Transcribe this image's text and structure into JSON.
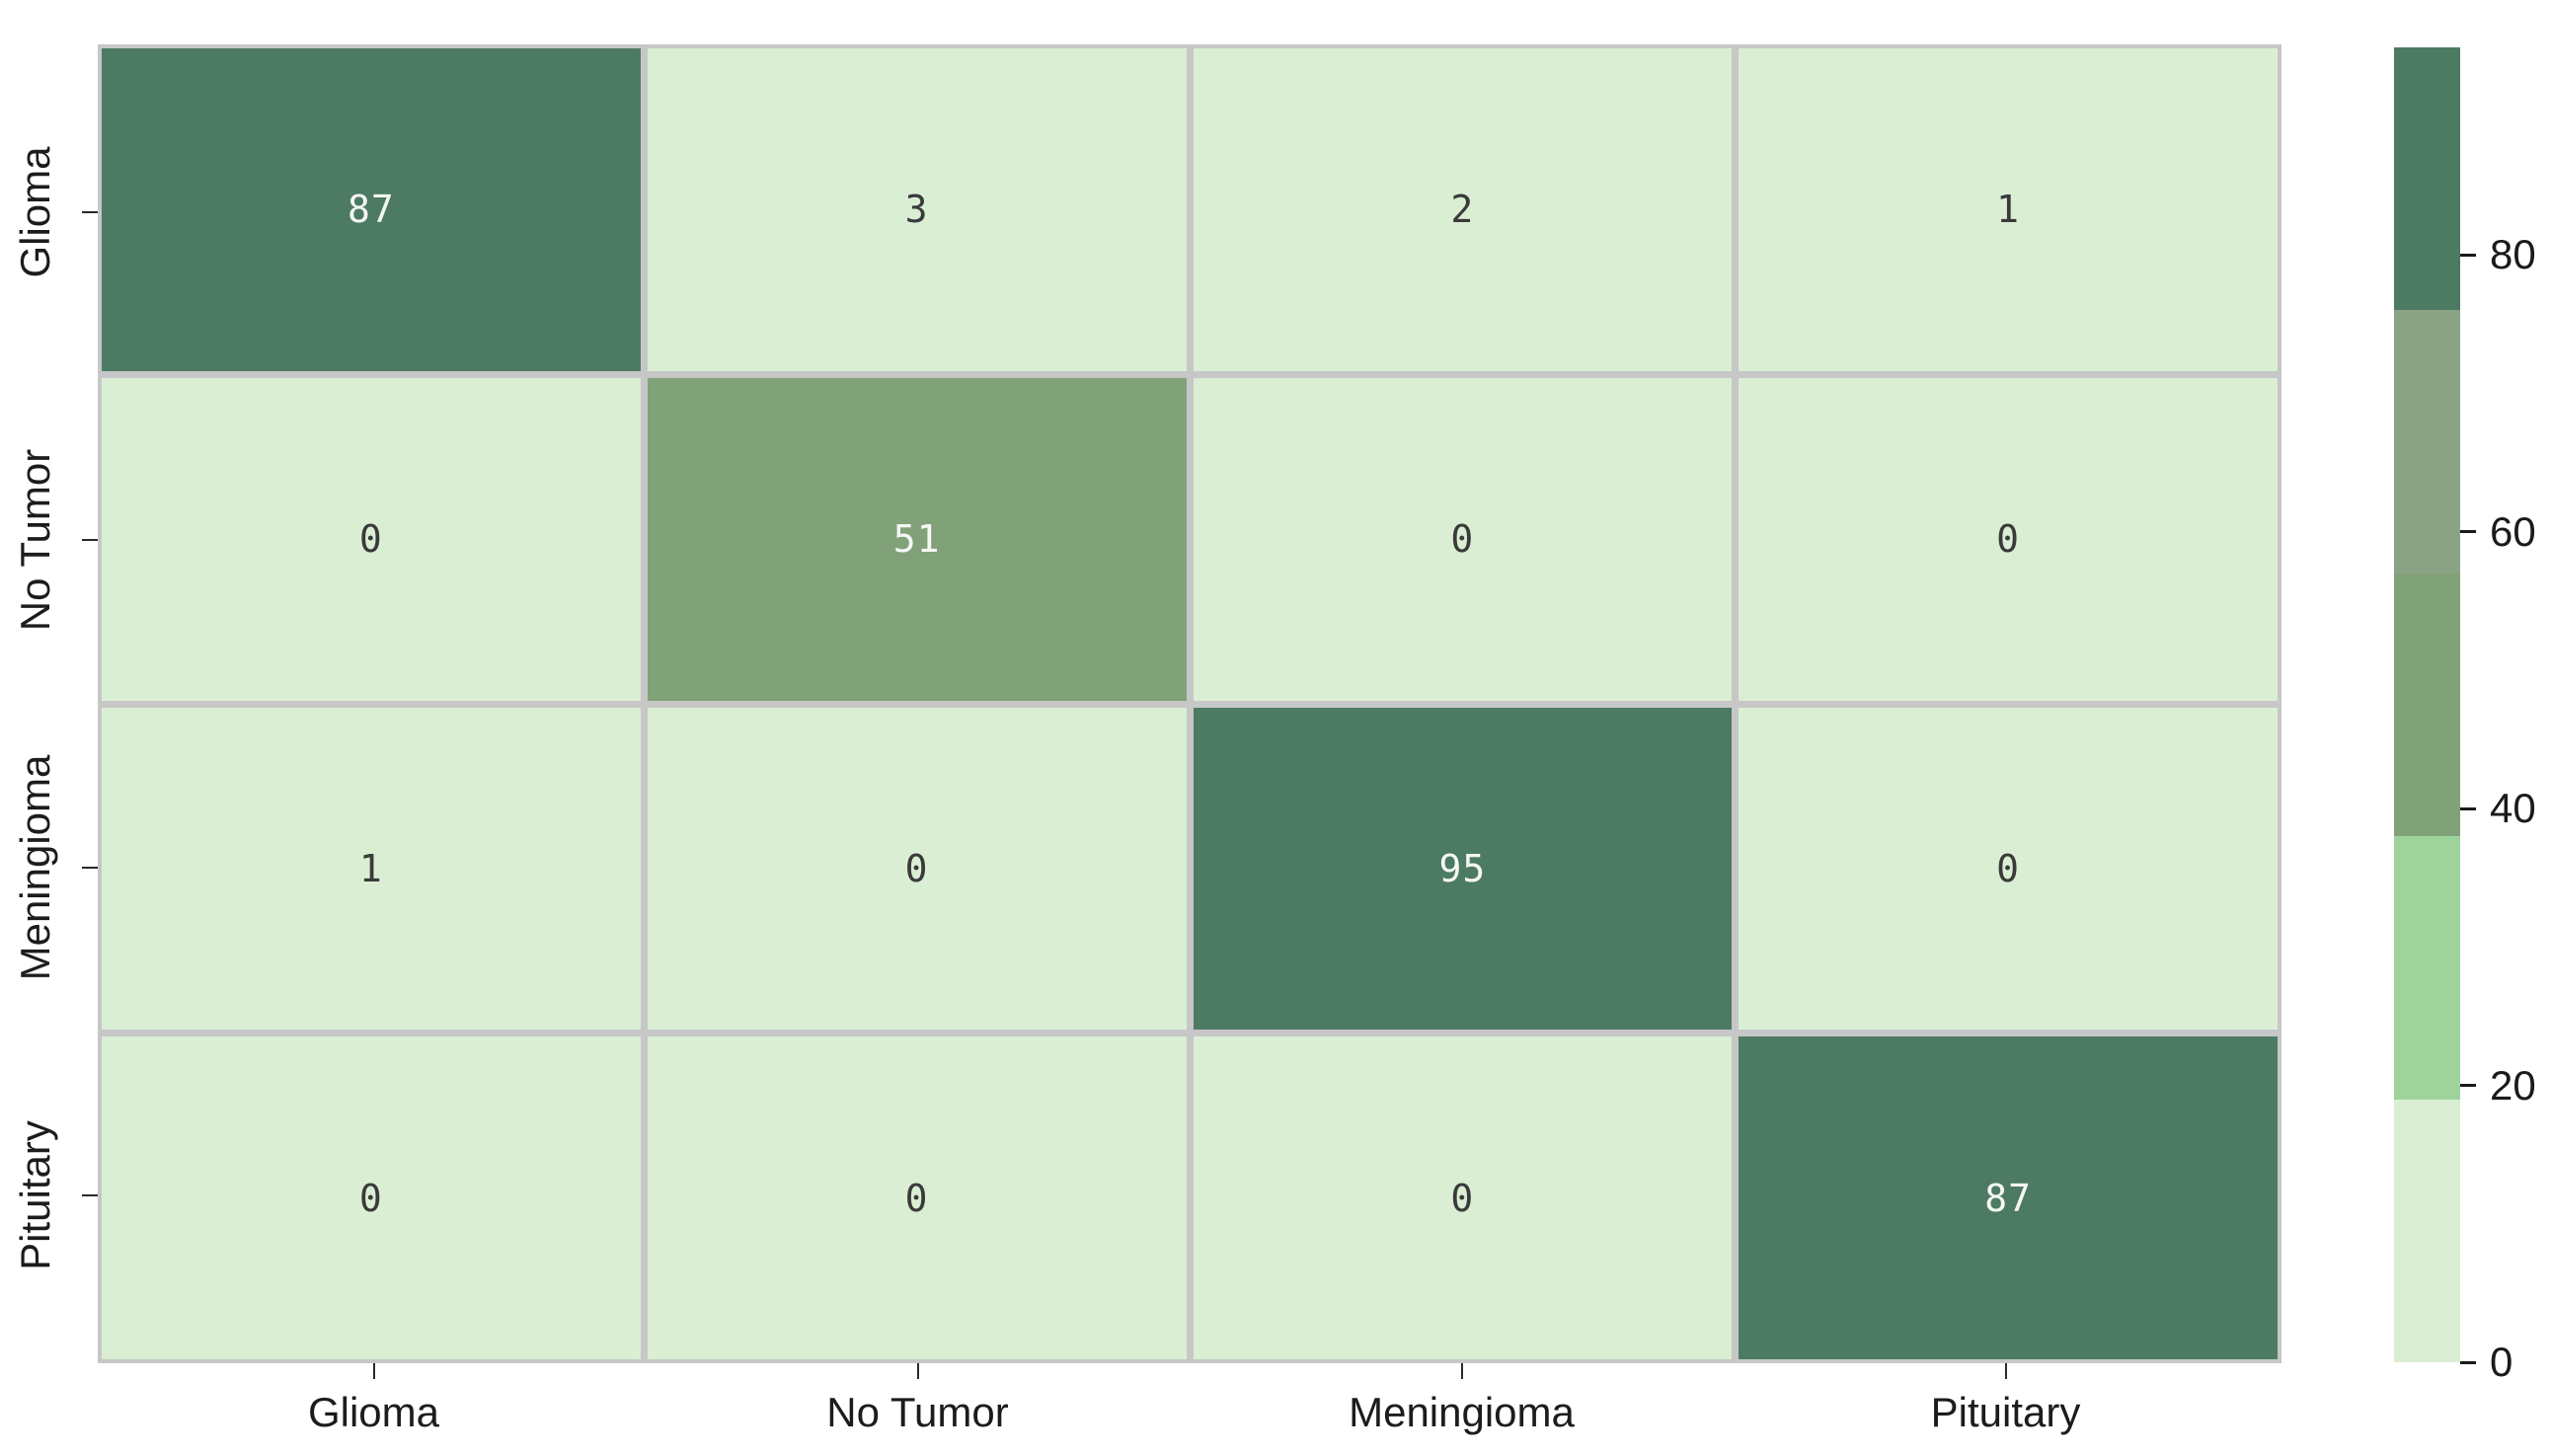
{
  "chart_data": {
    "type": "heatmap",
    "title": "",
    "xlabel": "",
    "ylabel": "",
    "x_tick_labels": [
      "Glioma",
      "No Tumor",
      "Meningioma",
      "Pituitary"
    ],
    "y_tick_labels": [
      "Glioma",
      "No Tumor",
      "Meningioma",
      "Pituitary"
    ],
    "matrix": [
      [
        87,
        3,
        2,
        1
      ],
      [
        0,
        51,
        0,
        0
      ],
      [
        1,
        0,
        95,
        0
      ],
      [
        0,
        0,
        0,
        87
      ]
    ],
    "annotations_shown": true,
    "grid_line_color": "#c7c7c7",
    "annotation_color_on_light": "#3a3a3a",
    "annotation_color_on_dark": "#f5f7f4",
    "colorbar": {
      "vmin": 0,
      "vmax": 95,
      "tick_values": [
        "0",
        "20",
        "40",
        "60",
        "80"
      ],
      "tick_numbers": [
        0,
        20,
        40,
        60,
        80
      ],
      "bands_low_to_high": [
        {
          "from": 0,
          "to": 19,
          "color": "#daeed3"
        },
        {
          "from": 19,
          "to": 38,
          "color": "#9ed49b"
        },
        {
          "from": 38,
          "to": 57,
          "color": "#81a178"
        },
        {
          "from": 57,
          "to": 76,
          "color": "#8ba385"
        },
        {
          "from": 76,
          "to": 95,
          "color": "#4d7a63"
        }
      ],
      "position": "right"
    },
    "legend": null
  }
}
